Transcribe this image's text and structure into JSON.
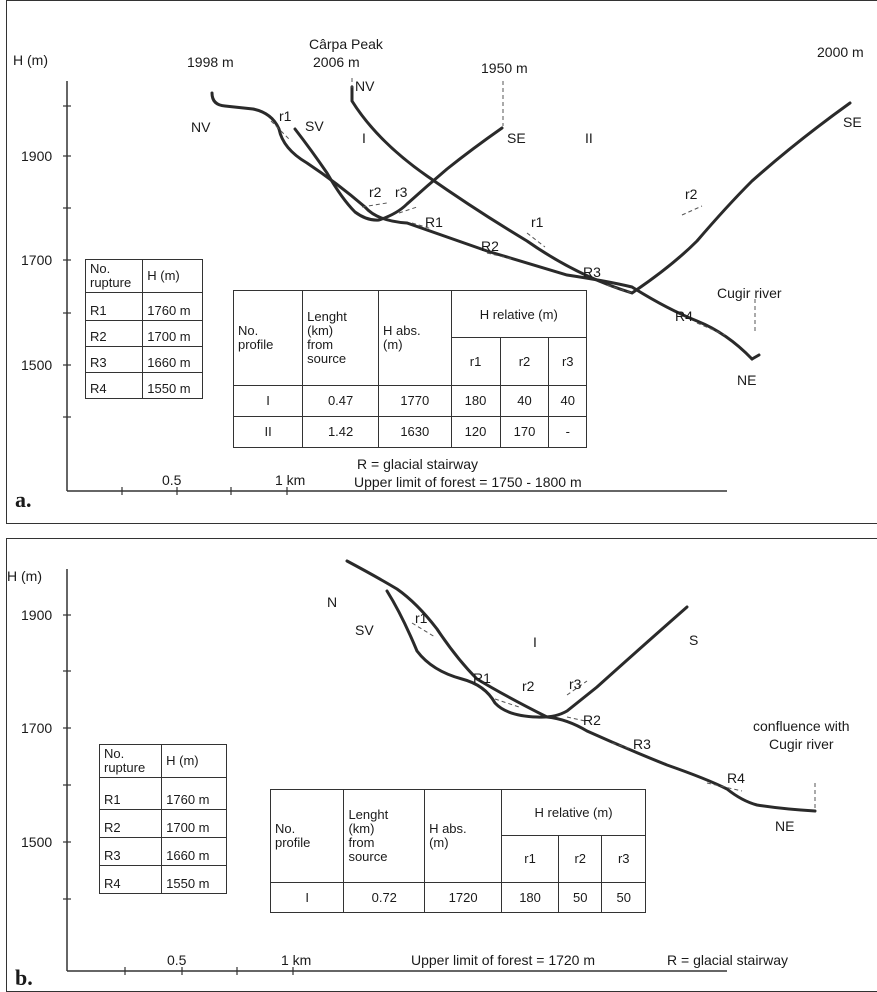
{
  "panel_a": {
    "letter": "a.",
    "y_axis_label": "H (m)",
    "y_ticks": [
      "1900",
      "1700",
      "1500"
    ],
    "x_ticks": [
      "0.5",
      "1 km"
    ],
    "top_labels": {
      "p1998": "1998 m",
      "carpa_peak": "Cârpa Peak",
      "p2006": "2006 m",
      "p1950": "1950 m",
      "p2000": "2000 m",
      "cugir": "Cugir river"
    },
    "direction_labels": {
      "nv_left": "NV",
      "nv_top": "NV",
      "sv": "SV",
      "se1": "SE",
      "se2": "SE",
      "ne": "NE"
    },
    "profile_labels": {
      "i": "I",
      "ii": "II"
    },
    "rupture_labels": {
      "r1a": "r1",
      "r2a": "r2",
      "r3a": "r3",
      "r1b": "r1",
      "r2b": "r2",
      "R1": "R1",
      "R2": "R2",
      "R3": "R3",
      "R4": "R4"
    },
    "legend_r": "R = glacial stairway",
    "forest_limit": "Upper limit  of forest = 1750 - 1800 m",
    "rupture_table": {
      "header_no": "No.\nrupture",
      "header_h": "H (m)",
      "rows": [
        [
          "R1",
          "1760 m"
        ],
        [
          "R2",
          "1700 m"
        ],
        [
          "R3",
          "1660 m"
        ],
        [
          "R4",
          "1550 m"
        ]
      ]
    },
    "profile_table": {
      "h_no": "No.\nprofile",
      "h_len": "Lenght\n(km)\nfrom\nsource",
      "h_abs": "H abs.\n(m)",
      "h_rel": "H relative (m)",
      "sub": [
        "r1",
        "r2",
        "r3"
      ],
      "rows": [
        [
          "I",
          "0.47",
          "1770",
          "180",
          "40",
          "40"
        ],
        [
          "II",
          "1.42",
          "1630",
          "120",
          "170",
          "-"
        ]
      ]
    }
  },
  "panel_b": {
    "letter": "b.",
    "y_axis_label": "H (m)",
    "y_ticks": [
      "1900",
      "1700",
      "1500"
    ],
    "x_ticks": [
      "0.5",
      "1 km"
    ],
    "direction_labels": {
      "n": "N",
      "sv": "SV",
      "s": "S",
      "ne": "NE"
    },
    "profile_labels": {
      "i": "I"
    },
    "rupture_labels": {
      "r1": "r1",
      "r2": "r2",
      "r3": "r3",
      "R1": "R1",
      "R2": "R2",
      "R3": "R3",
      "R4": "R4"
    },
    "confluence": [
      "confluence with",
      "Cugir river"
    ],
    "forest_limit": "Upper limit of forest = 1720 m",
    "legend_r": "R = glacial stairway",
    "rupture_table": {
      "header_no": "No.\nrupture",
      "header_h": "H (m)",
      "rows": [
        [
          "R1",
          "1760 m"
        ],
        [
          "R2",
          "1700 m"
        ],
        [
          "R3",
          "1660 m"
        ],
        [
          "R4",
          "1550 m"
        ]
      ]
    },
    "profile_table": {
      "h_no": "No.\nprofile",
      "h_len": "Lenght\n(km)\nfrom\nsource",
      "h_abs": "H abs.\n(m)",
      "h_rel": "H relative (m)",
      "sub": [
        "r1",
        "r2",
        "r3"
      ],
      "rows": [
        [
          "I",
          "0.72",
          "1720",
          "180",
          "50",
          "50"
        ]
      ]
    }
  }
}
